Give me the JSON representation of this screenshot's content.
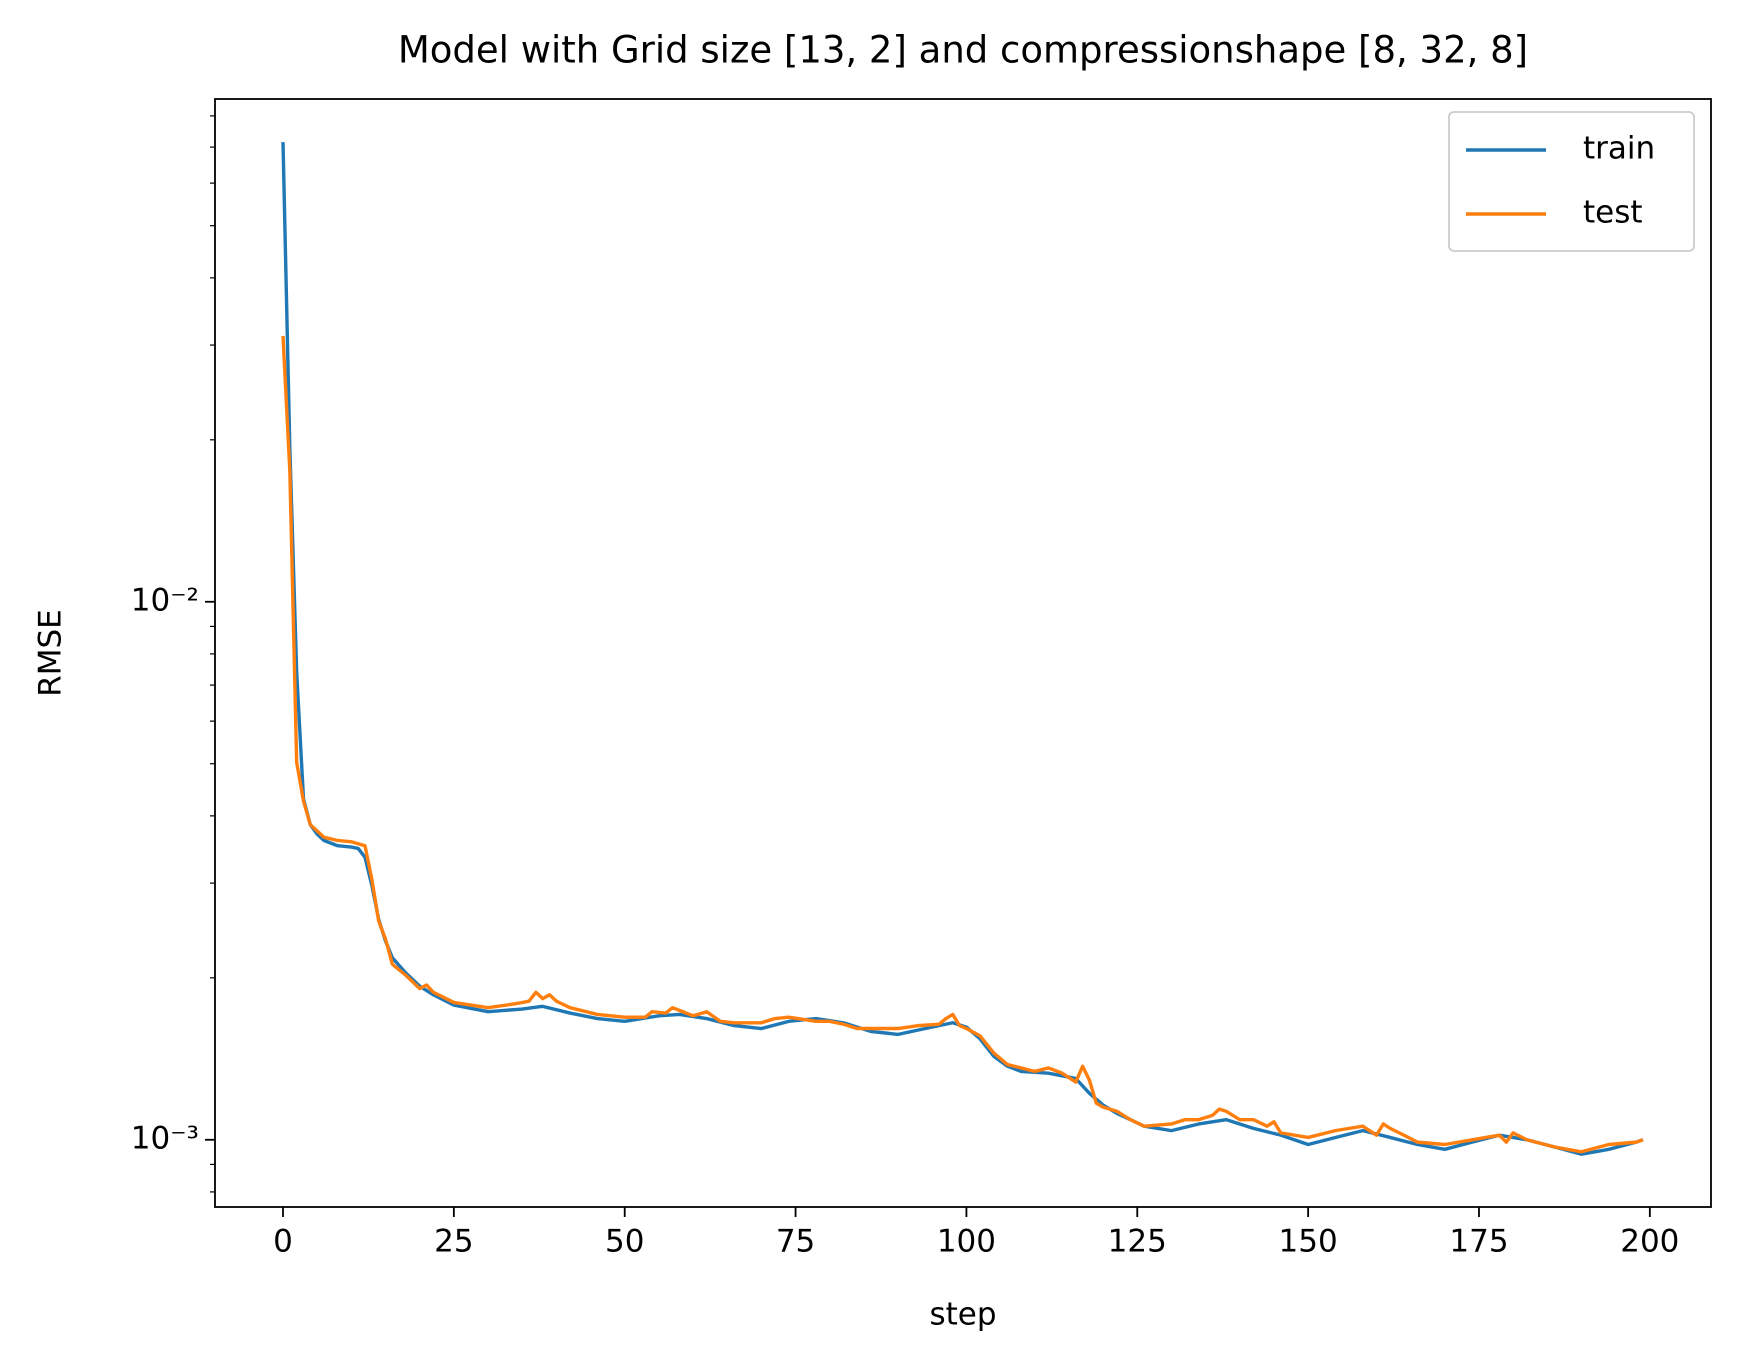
{
  "chart_data": {
    "type": "line",
    "title": "Model with Grid size [13, 2] and compressionshape [8, 32, 8]",
    "x_label": "step",
    "y_label": "RMSE",
    "y_log": true,
    "legend_position": "upper right",
    "xlim": [
      -9.95,
      208.95
    ],
    "xticks": [
      0,
      25,
      50,
      75,
      100,
      125,
      150,
      175,
      200
    ],
    "ylim": [
      0.00075,
      0.086
    ],
    "yticks": [
      {
        "value": 0.001,
        "label": "10⁻³"
      },
      {
        "value": 0.01,
        "label": "10⁻²"
      }
    ],
    "yticks_minor": [
      0.0008,
      0.0009,
      0.002,
      0.003,
      0.004,
      0.005,
      0.006,
      0.007,
      0.008,
      0.009,
      0.02,
      0.03,
      0.04,
      0.05,
      0.06,
      0.07,
      0.08
    ],
    "series": [
      {
        "name": "train",
        "color": "#1f77b4",
        "x": [
          0,
          1,
          2,
          3,
          4,
          5,
          6,
          8,
          10,
          11,
          12,
          13,
          14,
          15,
          16,
          18,
          20,
          22,
          25,
          30,
          35,
          38,
          42,
          46,
          50,
          55,
          58,
          62,
          66,
          70,
          74,
          78,
          82,
          86,
          90,
          94,
          98,
          100,
          102,
          104,
          106,
          108,
          112,
          116,
          118,
          120,
          122,
          124,
          126,
          130,
          134,
          138,
          142,
          146,
          150,
          154,
          158,
          162,
          166,
          170,
          174,
          178,
          182,
          186,
          190,
          194,
          198,
          199
        ],
        "values": [
          0.0715,
          0.0193,
          0.0074,
          0.0043,
          0.00385,
          0.0037,
          0.0036,
          0.00352,
          0.0035,
          0.00348,
          0.00335,
          0.00297,
          0.00257,
          0.00234,
          0.00218,
          0.00204,
          0.00193,
          0.00186,
          0.00178,
          0.00173,
          0.00175,
          0.00177,
          0.00172,
          0.00168,
          0.00166,
          0.0017,
          0.00171,
          0.00168,
          0.00163,
          0.00161,
          0.00166,
          0.00168,
          0.00165,
          0.00159,
          0.00157,
          0.00161,
          0.00165,
          0.00162,
          0.00154,
          0.00143,
          0.00137,
          0.00134,
          0.00133,
          0.0013,
          0.00122,
          0.00116,
          0.00112,
          0.00109,
          0.00106,
          0.00104,
          0.00107,
          0.00109,
          0.00105,
          0.00102,
          0.00098,
          0.00101,
          0.00104,
          0.00101,
          0.00098,
          0.00096,
          0.00099,
          0.00102,
          0.001,
          0.00097,
          0.00094,
          0.00096,
          0.00099,
          0.001
        ]
      },
      {
        "name": "test",
        "color": "#ff7f0e",
        "x": [
          0,
          1,
          2,
          3,
          4,
          6,
          8,
          10,
          12,
          13,
          14,
          15,
          16,
          18,
          20,
          21,
          22,
          25,
          30,
          34,
          36,
          37,
          38,
          39,
          40,
          42,
          46,
          50,
          53,
          54,
          56,
          57,
          58,
          60,
          62,
          64,
          66,
          70,
          72,
          74,
          78,
          80,
          82,
          84,
          86,
          90,
          93,
          96,
          97,
          98,
          99,
          100,
          102,
          104,
          106,
          108,
          110,
          112,
          114,
          116,
          117,
          118,
          119,
          120,
          122,
          124,
          126,
          130,
          132,
          134,
          136,
          137,
          138,
          140,
          142,
          144,
          145,
          146,
          150,
          154,
          156,
          158,
          160,
          161,
          162,
          164,
          166,
          170,
          174,
          176,
          178,
          179,
          180,
          182,
          186,
          190,
          194,
          198,
          199
        ],
        "values": [
          0.0312,
          0.0175,
          0.00503,
          0.00426,
          0.00385,
          0.00365,
          0.0036,
          0.00358,
          0.00352,
          0.00305,
          0.00255,
          0.00236,
          0.00212,
          0.00202,
          0.00191,
          0.00194,
          0.00188,
          0.0018,
          0.00176,
          0.00179,
          0.00181,
          0.00188,
          0.00183,
          0.00186,
          0.00181,
          0.00176,
          0.00171,
          0.00169,
          0.00169,
          0.00173,
          0.00172,
          0.00176,
          0.00174,
          0.0017,
          0.00173,
          0.00166,
          0.00165,
          0.00165,
          0.00168,
          0.00169,
          0.00166,
          0.00166,
          0.00164,
          0.00161,
          0.00161,
          0.00161,
          0.00163,
          0.00164,
          0.00168,
          0.00171,
          0.00163,
          0.00161,
          0.00156,
          0.00145,
          0.00138,
          0.00136,
          0.00134,
          0.00136,
          0.00133,
          0.00128,
          0.00137,
          0.00129,
          0.00117,
          0.00115,
          0.00113,
          0.00109,
          0.00106,
          0.00107,
          0.00109,
          0.00109,
          0.00111,
          0.00114,
          0.00113,
          0.00109,
          0.00109,
          0.00106,
          0.00108,
          0.00103,
          0.00101,
          0.00104,
          0.00105,
          0.00106,
          0.00102,
          0.00107,
          0.00105,
          0.00102,
          0.00099,
          0.00098,
          0.001,
          0.00101,
          0.00102,
          0.00099,
          0.00103,
          0.001,
          0.00097,
          0.00095,
          0.00098,
          0.00099,
          0.001
        ]
      }
    ]
  }
}
